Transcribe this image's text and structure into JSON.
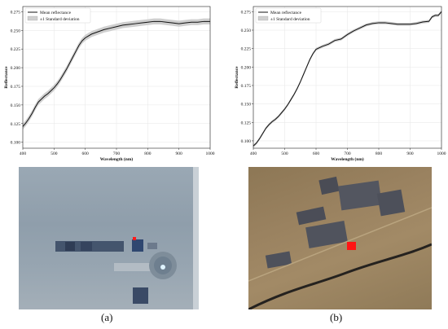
{
  "chart_data": [
    {
      "type": "line",
      "xlabel": "Wavelength (nm)",
      "ylabel": "Reflectance",
      "xlim": [
        400,
        1000
      ],
      "ylim": [
        0.092,
        0.282
      ],
      "xticks": [
        400,
        500,
        600,
        700,
        800,
        900,
        1000
      ],
      "yticks": [
        0.1,
        0.125,
        0.15,
        0.175,
        0.2,
        0.225,
        0.25,
        0.275
      ],
      "ytick_labels": [
        "0.100",
        "0.125",
        "0.150",
        "0.175",
        "0.200",
        "0.225",
        "0.250",
        "0.275"
      ],
      "grid": true,
      "legend_position": "top-left",
      "legend": [
        "Mean reflectance",
        "±1 Standard deviation"
      ],
      "colors": {
        "mean": "#111111",
        "band": "#cfcfcf"
      },
      "series": [
        {
          "name": "Mean reflectance",
          "x": [
            400,
            410,
            420,
            430,
            440,
            450,
            460,
            470,
            480,
            490,
            500,
            510,
            520,
            530,
            540,
            550,
            560,
            570,
            580,
            590,
            600,
            620,
            640,
            660,
            680,
            700,
            720,
            740,
            760,
            780,
            800,
            820,
            840,
            860,
            880,
            900,
            920,
            940,
            960,
            980,
            1000
          ],
          "y": [
            0.121,
            0.126,
            0.132,
            0.139,
            0.147,
            0.154,
            0.158,
            0.162,
            0.165,
            0.169,
            0.173,
            0.178,
            0.184,
            0.191,
            0.198,
            0.206,
            0.214,
            0.222,
            0.23,
            0.236,
            0.24,
            0.245,
            0.248,
            0.251,
            0.253,
            0.255,
            0.257,
            0.258,
            0.259,
            0.26,
            0.261,
            0.262,
            0.262,
            0.261,
            0.26,
            0.259,
            0.26,
            0.261,
            0.261,
            0.262,
            0.262
          ]
        },
        {
          "name": "±1 Standard deviation",
          "band_halfwidth": 0.004
        }
      ],
      "caption": "(a)"
    },
    {
      "type": "line",
      "xlabel": "Wavelength (nm)",
      "ylabel": "Reflectance",
      "xlim": [
        400,
        1000
      ],
      "ylim": [
        0.09,
        0.282
      ],
      "xticks": [
        400,
        500,
        600,
        700,
        800,
        900,
        1000
      ],
      "yticks": [
        0.1,
        0.125,
        0.15,
        0.175,
        0.2,
        0.225,
        0.25,
        0.275
      ],
      "ytick_labels": [
        "0.100",
        "0.125",
        "0.150",
        "0.175",
        "0.200",
        "0.225",
        "0.250",
        "0.275"
      ],
      "grid": true,
      "legend_position": "top-left",
      "legend": [
        "Mean reflectance",
        "±1 Standard deviation"
      ],
      "colors": {
        "mean": "#111111",
        "band": "#cfcfcf"
      },
      "series": [
        {
          "name": "Mean reflectance",
          "x": [
            400,
            410,
            420,
            430,
            440,
            450,
            460,
            470,
            480,
            490,
            500,
            510,
            520,
            530,
            540,
            550,
            560,
            570,
            580,
            590,
            600,
            620,
            640,
            660,
            680,
            700,
            720,
            740,
            760,
            780,
            800,
            820,
            840,
            860,
            880,
            900,
            920,
            940,
            960,
            970,
            980,
            990,
            1000
          ],
          "y": [
            0.093,
            0.097,
            0.103,
            0.11,
            0.117,
            0.122,
            0.126,
            0.129,
            0.133,
            0.138,
            0.143,
            0.149,
            0.156,
            0.163,
            0.171,
            0.18,
            0.19,
            0.2,
            0.21,
            0.218,
            0.224,
            0.228,
            0.231,
            0.236,
            0.238,
            0.244,
            0.249,
            0.253,
            0.257,
            0.259,
            0.26,
            0.26,
            0.259,
            0.258,
            0.258,
            0.258,
            0.259,
            0.261,
            0.262,
            0.268,
            0.27,
            0.27,
            0.275
          ]
        },
        {
          "name": "±1 Standard deviation",
          "band_halfwidth": 0.002
        }
      ],
      "caption": "(b)"
    }
  ],
  "captions": {
    "a": "(a)",
    "b": "(b)"
  }
}
